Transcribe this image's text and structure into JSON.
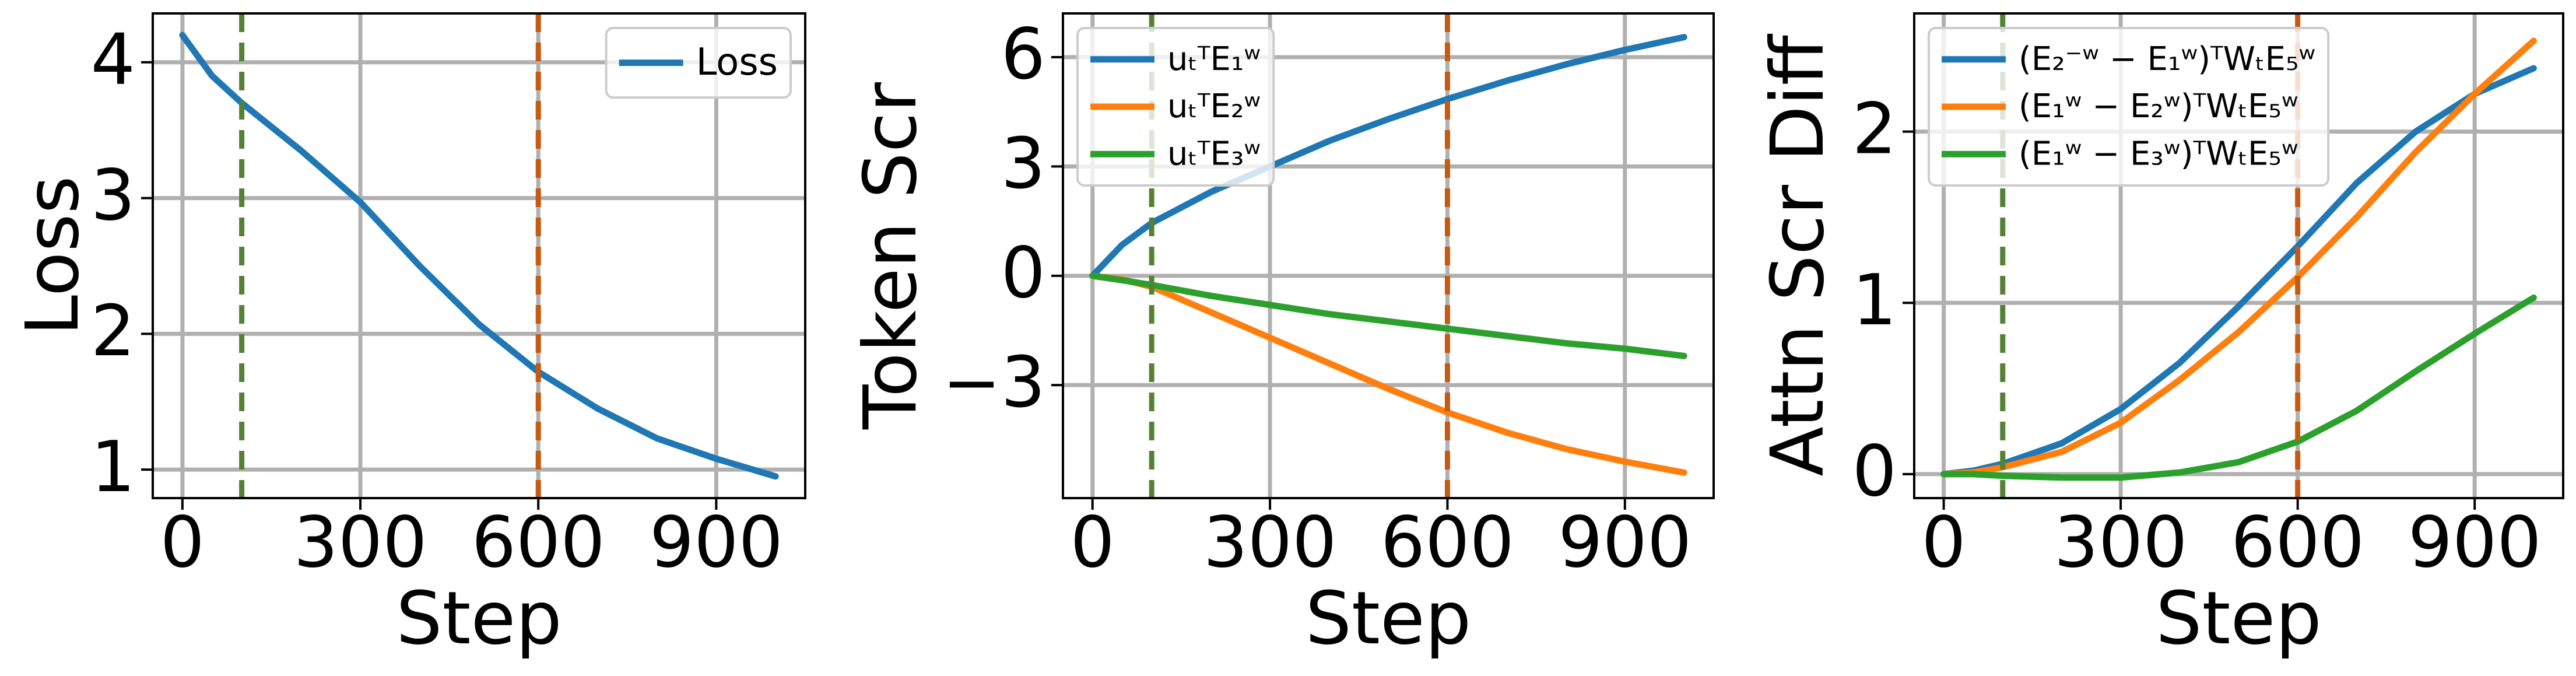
{
  "chart_data": [
    {
      "type": "line",
      "xlabel": "Step",
      "ylabel": "Loss",
      "x": [
        0,
        50,
        100,
        200,
        300,
        400,
        500,
        600,
        700,
        800,
        900,
        1000
      ],
      "series": [
        {
          "name": "Loss",
          "color": "#1f77b4",
          "values": [
            4.2,
            3.9,
            3.7,
            3.35,
            2.97,
            2.5,
            2.07,
            1.72,
            1.45,
            1.23,
            1.08,
            0.95
          ]
        }
      ],
      "xlim": [
        -50,
        1050
      ],
      "ylim": [
        0.79,
        4.36
      ],
      "xticks": [
        0,
        300,
        600,
        900
      ],
      "yticks": [
        1,
        2,
        3,
        4
      ],
      "grid": true,
      "legend": "upper-right",
      "vlines": [
        {
          "x": 100,
          "color": "#548235"
        },
        {
          "x": 600,
          "color": "#c55a11"
        }
      ]
    },
    {
      "type": "line",
      "xlabel": "Step",
      "ylabel": "Token Scr",
      "x": [
        0,
        50,
        100,
        200,
        300,
        400,
        500,
        600,
        700,
        800,
        900,
        1000
      ],
      "series": [
        {
          "name": "uₜᵀE₁ʷ",
          "color": "#1f77b4",
          "values": [
            0,
            0.85,
            1.45,
            2.3,
            3.0,
            3.7,
            4.3,
            4.85,
            5.35,
            5.8,
            6.2,
            6.55
          ]
        },
        {
          "name": "uₜᵀE₂ʷ",
          "color": "#ff7f0e",
          "values": [
            0,
            -0.1,
            -0.3,
            -1.0,
            -1.7,
            -2.4,
            -3.1,
            -3.75,
            -4.3,
            -4.75,
            -5.1,
            -5.4
          ]
        },
        {
          "name": "uₜᵀE₃ʷ",
          "color": "#2ca02c",
          "values": [
            0,
            -0.12,
            -0.25,
            -0.55,
            -0.8,
            -1.05,
            -1.25,
            -1.45,
            -1.65,
            -1.85,
            -2.0,
            -2.2
          ]
        }
      ],
      "xlim": [
        -50,
        1050
      ],
      "ylim": [
        -6.1,
        7.2
      ],
      "xticks": [
        0,
        300,
        600,
        900
      ],
      "yticks": [
        {
          "value": -3,
          "label": "−3"
        },
        0,
        3,
        6
      ],
      "grid": true,
      "legend": "upper-left",
      "vlines": [
        {
          "x": 100,
          "color": "#548235"
        },
        {
          "x": 600,
          "color": "#c55a11"
        }
      ]
    },
    {
      "type": "line",
      "xlabel": "Step",
      "ylabel": "Attn Scr Diff",
      "x": [
        0,
        50,
        100,
        200,
        300,
        400,
        500,
        600,
        700,
        800,
        900,
        1000
      ],
      "series": [
        {
          "name": "(E₂⁻ʷ − E₁ʷ)ᵀWₜE₅ʷ",
          "color": "#1f77b4",
          "values": [
            0,
            0.02,
            0.06,
            0.18,
            0.38,
            0.65,
            0.98,
            1.33,
            1.7,
            2.0,
            2.22,
            2.37
          ]
        },
        {
          "name": "(E₁ʷ − E₂ʷ)ᵀWₜE₅ʷ",
          "color": "#ff7f0e",
          "values": [
            0,
            0.01,
            0.04,
            0.13,
            0.3,
            0.55,
            0.83,
            1.15,
            1.5,
            1.88,
            2.22,
            2.53
          ]
        },
        {
          "name": "(E₁ʷ − E₃ʷ)ᵀWₜE₅ʷ",
          "color": "#2ca02c",
          "values": [
            0,
            0,
            -0.01,
            -0.02,
            -0.02,
            0.01,
            0.07,
            0.19,
            0.37,
            0.6,
            0.82,
            1.03
          ]
        }
      ],
      "xlim": [
        -50,
        1050
      ],
      "ylim": [
        -0.14,
        2.69
      ],
      "xticks": [
        0,
        300,
        600,
        900
      ],
      "yticks": [
        0,
        1,
        2
      ],
      "grid": true,
      "legend": "upper-left",
      "vlines": [
        {
          "x": 100,
          "color": "#548235"
        },
        {
          "x": 600,
          "color": "#c55a11"
        }
      ]
    }
  ]
}
